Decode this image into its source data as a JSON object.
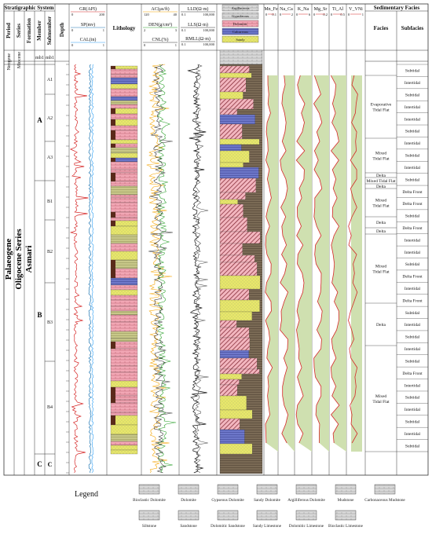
{
  "header": {
    "stratigraphic_system": "Stratigraphic System",
    "sedimentary_facies": "Sedimentary Facies",
    "period": "Period",
    "series": "Series",
    "formation": "Formation",
    "member": "Member",
    "submember": "Submember",
    "depth": "Depth",
    "lithology": "Lithology",
    "facies": "Facies",
    "subfacies": "Subfacies"
  },
  "curve_headers": {
    "gr": "GR(API)",
    "gr_min": "0",
    "gr_max": "200",
    "sp": "SP(mv)",
    "sp_min": "0",
    "sp_max": "1",
    "cal": "CAL(in)",
    "cal_min": "0",
    "cal_max": "1",
    "ac": "AC(μs/ft)",
    "ac_min": "120",
    "ac_max": "40",
    "den": "DEN(g/cm³)",
    "den_min": "2",
    "den_max": "3",
    "cnl": "CNL(%)",
    "cnl_min": "0",
    "cnl_max": "1",
    "lld": "LLD(Ω·m)",
    "lld_min": "0.1",
    "lld_max": "100,000",
    "lls": "LLS(Ω·m)",
    "lls_min": "0.1",
    "lls_max": "100,000",
    "rmll": "RMLL(Ω·m)",
    "rmll_min": "0.1",
    "rmll_max": "100,000"
  },
  "comp_legend": [
    "Argillaceous",
    "Gypsiferous",
    "Dolomitic",
    "Calcareous",
    "Sandy"
  ],
  "ratio_headers": [
    {
      "name": "Mn_Fe",
      "min": "0",
      "max": "0.1"
    },
    {
      "name": "Na_Ca",
      "min": "0",
      "max": "2"
    },
    {
      "name": "K_Na",
      "min": "0",
      "max": "6"
    },
    {
      "name": "Mg_Sr",
      "min": "0",
      "max": "0.2"
    },
    {
      "name": "Ti_Al",
      "min": "0",
      "max": "0.5"
    },
    {
      "name": "V_VNi",
      "min": "0",
      "max": "1"
    }
  ],
  "strat": {
    "period_1": "Neogene",
    "period_2": "Palaeogene",
    "series_1": "Miocene",
    "series_2": "Oligocene Series",
    "formation": "Asmari",
    "member_1": "mb1",
    "member_A": "A",
    "member_B": "B",
    "member_C": "C",
    "sub_mb1": "mb1",
    "sub": [
      "A1",
      "A2",
      "A3",
      "B1",
      "B2",
      "B3",
      "B4",
      "C"
    ]
  },
  "facies": [
    "Evaporative Tidal Flat",
    "Mixed Tidal Flat",
    "Delta",
    "Mixed Tidal Flat",
    "Delta",
    "Mixed Tidal Flat",
    "Delta",
    "Delta",
    "Mixed Tidal Flat",
    "Delta",
    "Mixed Tidal Flat"
  ],
  "subfacies": [
    "Subtidal",
    "Intertidal",
    "Subtidal",
    "Intertidal",
    "Intertidal",
    "Subtidal",
    "Intertidal",
    "Subtidal",
    "Intertidal",
    "Subtidal",
    "Delta Front",
    "Delta Front",
    "Subtidal",
    "Delta Front",
    "Intertidal",
    "Intertidal",
    "Subtidal",
    "Delta Front",
    "Intertidal",
    "Delta Front",
    "Subtidal",
    "Intertidal",
    "Subtidal",
    "Intertidal",
    "Subtidal",
    "Delta Front",
    "Intertidal",
    "Subtidal",
    "Intertidal",
    "Subtidal",
    "Intertidal",
    "Subtidal"
  ],
  "legend": {
    "title": "Legend",
    "row1": [
      "Bioclastic Dolomite",
      "Dolomite",
      "Gypseous Dolomite",
      "Sandy Dolomite",
      "Argilliferous Dolomite",
      "Mudstone",
      "Carbonaceous Mudstone"
    ],
    "row2": [
      "Siltstone",
      "Sandstone",
      "Dolomitic Sandstone",
      "Sandy Limestone",
      "Dolomitic Limestone",
      "Bioclastic Limestone"
    ]
  },
  "colors": {
    "gr": "#d62828",
    "sp": "#1f77b4",
    "cal": "#2a9df4",
    "ac": "#f4a300",
    "den": "#2ca02c",
    "cnl": "#333333",
    "dolomite_pink": "#f2a7b5",
    "sand_yellow": "#e8e86a",
    "mud_blue": "#6d77c9",
    "dark_brown": "#5a2a1a",
    "ratio_fill": "#cfe0b0",
    "ratio_line": "#d62828"
  }
}
